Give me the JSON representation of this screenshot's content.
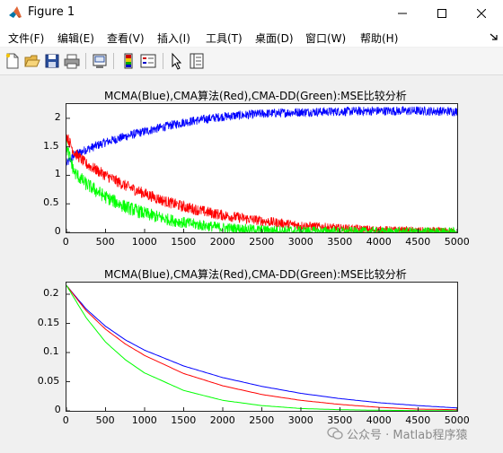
{
  "window": {
    "title": "Figure 1",
    "controls": {
      "minimize": "—",
      "maximize": "☐",
      "close": "✕"
    }
  },
  "menu": [
    {
      "label": "文件(F)"
    },
    {
      "label": "编辑(E)"
    },
    {
      "label": "查看(V)"
    },
    {
      "label": "插入(I)"
    },
    {
      "label": "工具(T)"
    },
    {
      "label": "桌面(D)"
    },
    {
      "label": "窗口(W)"
    },
    {
      "label": "帮助(H)"
    }
  ],
  "toolbar": [
    {
      "icon": "new-figure-icon"
    },
    {
      "icon": "open-file-icon"
    },
    {
      "icon": "save-icon"
    },
    {
      "icon": "print-icon"
    },
    {
      "icon": "link-plot-icon"
    },
    {
      "icon": "colorbar-icon"
    },
    {
      "icon": "legend-icon"
    },
    {
      "icon": "edit-plot-icon"
    },
    {
      "icon": "property-inspector-icon"
    }
  ],
  "watermark": "公众号 · Matlab程序猿",
  "colors": {
    "blue": "#0000ff",
    "red": "#ff0000",
    "green": "#00ff00"
  },
  "chart_data": [
    {
      "type": "line",
      "title": "MCMA(Blue),CMA算法(Red),CMA-DD(Green):MSE比较分析",
      "xlabel": "",
      "ylabel": "",
      "xlim": [
        0,
        5000
      ],
      "ylim": [
        0,
        2.25
      ],
      "xticks": [
        "0",
        "500",
        "1000",
        "1500",
        "2000",
        "2500",
        "3000",
        "3500",
        "4000",
        "4500",
        "5000"
      ],
      "yticks": [
        "0",
        "0.5",
        "1",
        "1.5",
        "2"
      ],
      "grid": false,
      "series": [
        {
          "color": "#0000ff",
          "x": [
            0,
            100,
            250,
            500,
            750,
            1000,
            1250,
            1500,
            1750,
            2000,
            2500,
            3000,
            3500,
            4000,
            4500,
            5000
          ],
          "y": [
            1.2,
            1.35,
            1.45,
            1.58,
            1.68,
            1.77,
            1.85,
            1.93,
            1.98,
            2.03,
            2.08,
            2.11,
            2.12,
            2.13,
            2.13,
            2.12
          ],
          "noise": 0.08
        },
        {
          "color": "#ff0000",
          "x": [
            0,
            100,
            250,
            500,
            750,
            1000,
            1250,
            1500,
            1750,
            2000,
            2500,
            3000,
            3500,
            4000,
            4500,
            5000
          ],
          "y": [
            1.7,
            1.4,
            1.2,
            1.0,
            0.82,
            0.68,
            0.55,
            0.45,
            0.37,
            0.3,
            0.2,
            0.12,
            0.07,
            0.04,
            0.02,
            0.01
          ],
          "noise": 0.1
        },
        {
          "color": "#00ff00",
          "x": [
            0,
            100,
            250,
            500,
            750,
            1000,
            1250,
            1500,
            1750,
            2000,
            2500,
            3000,
            3500,
            4000,
            4500,
            5000
          ],
          "y": [
            1.5,
            1.05,
            0.85,
            0.62,
            0.45,
            0.33,
            0.24,
            0.17,
            0.12,
            0.08,
            0.04,
            0.02,
            0.01,
            0.005,
            0.003,
            0.002
          ],
          "noise": 0.12
        }
      ]
    },
    {
      "type": "line",
      "title": "MCMA(Blue),CMA算法(Red),CMA-DD(Green):MSE比较分析",
      "xlabel": "",
      "ylabel": "",
      "xlim": [
        0,
        5000
      ],
      "ylim": [
        0,
        0.22
      ],
      "xticks": [
        "0",
        "500",
        "1000",
        "1500",
        "2000",
        "2500",
        "3000",
        "3500",
        "4000",
        "4500",
        "5000"
      ],
      "yticks": [
        "0",
        "0.05",
        "0.1",
        "0.15",
        "0.2"
      ],
      "grid": false,
      "series": [
        {
          "color": "#0000ff",
          "x": [
            0,
            250,
            500,
            750,
            1000,
            1500,
            2000,
            2500,
            3000,
            3500,
            4000,
            4500,
            5000
          ],
          "y": [
            0.215,
            0.175,
            0.145,
            0.122,
            0.104,
            0.077,
            0.057,
            0.042,
            0.03,
            0.021,
            0.014,
            0.009,
            0.005
          ]
        },
        {
          "color": "#ff0000",
          "x": [
            0,
            250,
            500,
            750,
            1000,
            1500,
            2000,
            2500,
            3000,
            3500,
            4000,
            4500,
            5000
          ],
          "y": [
            0.215,
            0.172,
            0.14,
            0.115,
            0.095,
            0.064,
            0.043,
            0.028,
            0.018,
            0.011,
            0.006,
            0.003,
            0.002
          ]
        },
        {
          "color": "#00ff00",
          "x": [
            0,
            250,
            500,
            750,
            1000,
            1500,
            2000,
            2500,
            3000,
            3500,
            4000,
            4500,
            5000
          ],
          "y": [
            0.215,
            0.16,
            0.118,
            0.088,
            0.065,
            0.035,
            0.018,
            0.009,
            0.004,
            0.002,
            0.001,
            0.0005,
            0.0002
          ]
        }
      ]
    }
  ]
}
